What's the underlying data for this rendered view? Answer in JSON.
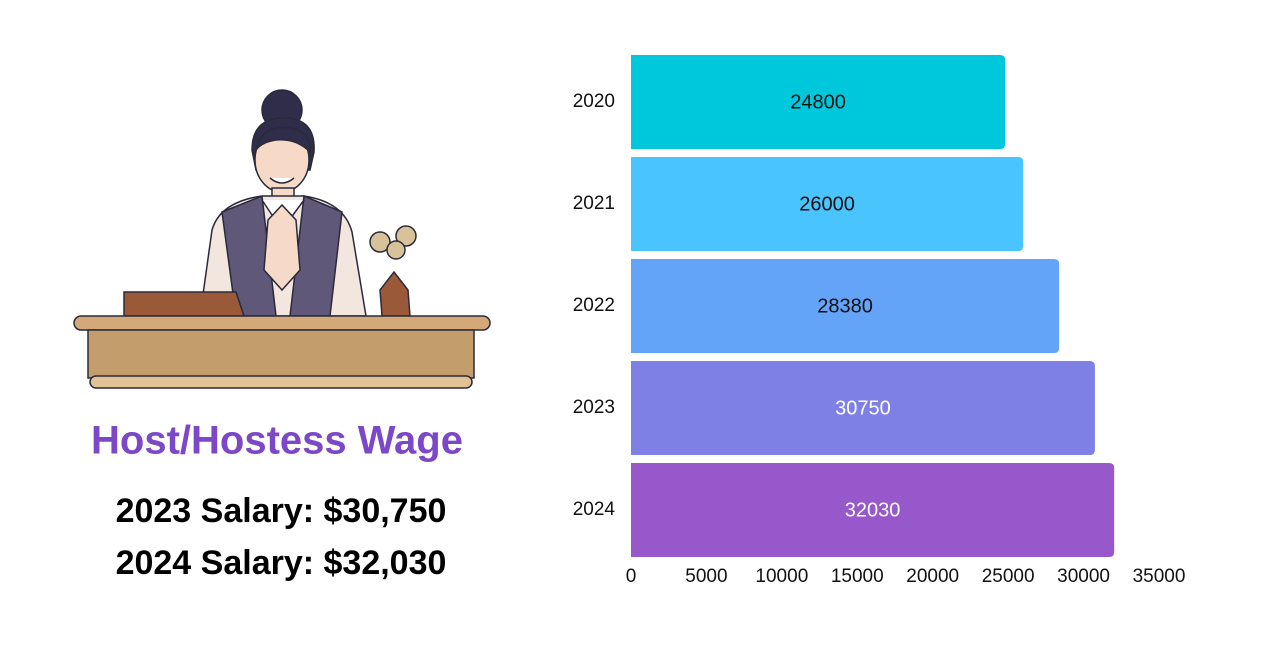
{
  "title": "Host/Hostess Wage",
  "salary_lines": [
    "2023 Salary: $30,750",
    "2024 Salary: $32,030"
  ],
  "chart_data": {
    "type": "hbar",
    "categories": [
      "2020",
      "2021",
      "2022",
      "2023",
      "2024"
    ],
    "values": [
      24800,
      26000,
      28380,
      30750,
      32030
    ],
    "colors": [
      "#00c8dc",
      "#4ac4fc",
      "#64a4f8",
      "#7f80e6",
      "#9758cc"
    ],
    "value_label_colors": [
      "#111111",
      "#111111",
      "#111111",
      "#ffffff",
      "#ffffff"
    ],
    "xlim": [
      0,
      35000
    ],
    "xticks": [
      0,
      5000,
      10000,
      15000,
      20000,
      25000,
      30000,
      35000
    ]
  }
}
